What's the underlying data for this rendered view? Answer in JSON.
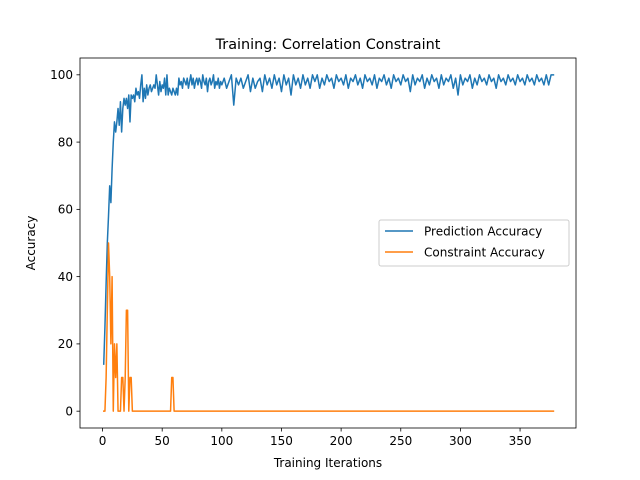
{
  "chart_data": {
    "type": "line",
    "title": "Training: Correlation Constraint",
    "xlabel": "Training Iterations",
    "ylabel": "Accuracy",
    "xlim": [
      -18.9,
      396.9
    ],
    "ylim": [
      -5,
      105
    ],
    "xticks": [
      0,
      50,
      100,
      150,
      200,
      250,
      300,
      350
    ],
    "yticks": [
      0,
      20,
      40,
      60,
      80,
      100
    ],
    "grid": false,
    "legend_position": "center-right",
    "series": [
      {
        "name": "Prediction Accuracy",
        "color": "#1f77b4",
        "points": [
          [
            1,
            14
          ],
          [
            2,
            25
          ],
          [
            3,
            38
          ],
          [
            4,
            50
          ],
          [
            5,
            58
          ],
          [
            6,
            67
          ],
          [
            7,
            62
          ],
          [
            8,
            72
          ],
          [
            9,
            80
          ],
          [
            10,
            86
          ],
          [
            11,
            83
          ],
          [
            12,
            86
          ],
          [
            13,
            90
          ],
          [
            14,
            85
          ],
          [
            15,
            92
          ],
          [
            16,
            83
          ],
          [
            17,
            90
          ],
          [
            18,
            93
          ],
          [
            19,
            91
          ],
          [
            20,
            93
          ],
          [
            21,
            90
          ],
          [
            22,
            94
          ],
          [
            23,
            86
          ],
          [
            24,
            94
          ],
          [
            25,
            93
          ],
          [
            26,
            94
          ],
          [
            27,
            92
          ],
          [
            28,
            96
          ],
          [
            29,
            94
          ],
          [
            30,
            95
          ],
          [
            31,
            93
          ],
          [
            32,
            97
          ],
          [
            33,
            100
          ],
          [
            34,
            92
          ],
          [
            35,
            96
          ],
          [
            36,
            93
          ],
          [
            37,
            97
          ],
          [
            38,
            94
          ],
          [
            39,
            96
          ],
          [
            40,
            97
          ],
          [
            41,
            95
          ],
          [
            42,
            96
          ],
          [
            43,
            97
          ],
          [
            44,
            96
          ],
          [
            45,
            100
          ],
          [
            46,
            97
          ],
          [
            47,
            94
          ],
          [
            48,
            98
          ],
          [
            49,
            95
          ],
          [
            50,
            97
          ],
          [
            51,
            96
          ],
          [
            52,
            99
          ],
          [
            53,
            94
          ],
          [
            54,
            100
          ],
          [
            55,
            94
          ],
          [
            56,
            96
          ],
          [
            57,
            95
          ],
          [
            58,
            94
          ],
          [
            59,
            96
          ],
          [
            60,
            95
          ],
          [
            61,
            94
          ],
          [
            62,
            96
          ],
          [
            63,
            94
          ],
          [
            64,
            99
          ],
          [
            65,
            97
          ],
          [
            66,
            98
          ],
          [
            67,
            96
          ],
          [
            68,
            99
          ],
          [
            69,
            98
          ],
          [
            70,
            97
          ],
          [
            71,
            99
          ],
          [
            72,
            96
          ],
          [
            73,
            98
          ],
          [
            74,
            100
          ],
          [
            75,
            97
          ],
          [
            76,
            99
          ],
          [
            77,
            96
          ],
          [
            78,
            98
          ],
          [
            79,
            99
          ],
          [
            80,
            97
          ],
          [
            81,
            99
          ],
          [
            82,
            98
          ],
          [
            83,
            96
          ],
          [
            84,
            100
          ],
          [
            85,
            98
          ],
          [
            86,
            97
          ],
          [
            87,
            99
          ],
          [
            88,
            95
          ],
          [
            89,
            98
          ],
          [
            90,
            99
          ],
          [
            91,
            97
          ],
          [
            92,
            98
          ],
          [
            93,
            100
          ],
          [
            94,
            96
          ],
          [
            95,
            98
          ],
          [
            96,
            97
          ],
          [
            97,
            99
          ],
          [
            98,
            96
          ],
          [
            99,
            98
          ],
          [
            100,
            97
          ],
          [
            102,
            99
          ],
          [
            104,
            96
          ],
          [
            106,
            98
          ],
          [
            108,
            100
          ],
          [
            110,
            91
          ],
          [
            112,
            99
          ],
          [
            114,
            97
          ],
          [
            116,
            99
          ],
          [
            118,
            96
          ],
          [
            120,
            98
          ],
          [
            122,
            100
          ],
          [
            124,
            95
          ],
          [
            126,
            99
          ],
          [
            128,
            96
          ],
          [
            130,
            98
          ],
          [
            132,
            99
          ],
          [
            134,
            95
          ],
          [
            136,
            100
          ],
          [
            138,
            97
          ],
          [
            140,
            99
          ],
          [
            142,
            96
          ],
          [
            144,
            100
          ],
          [
            146,
            97
          ],
          [
            148,
            99
          ],
          [
            150,
            95
          ],
          [
            152,
            100
          ],
          [
            154,
            97
          ],
          [
            156,
            99
          ],
          [
            158,
            94
          ],
          [
            160,
            100
          ],
          [
            162,
            97
          ],
          [
            164,
            99
          ],
          [
            166,
            96
          ],
          [
            168,
            100
          ],
          [
            170,
            97
          ],
          [
            172,
            99
          ],
          [
            174,
            96
          ],
          [
            176,
            100
          ],
          [
            178,
            98
          ],
          [
            180,
            100
          ],
          [
            182,
            96
          ],
          [
            184,
            99
          ],
          [
            186,
            97
          ],
          [
            188,
            100
          ],
          [
            190,
            98
          ],
          [
            192,
            99
          ],
          [
            194,
            96
          ],
          [
            196,
            100
          ],
          [
            198,
            98
          ],
          [
            200,
            99
          ],
          [
            202,
            97
          ],
          [
            204,
            100
          ],
          [
            206,
            96
          ],
          [
            208,
            99
          ],
          [
            210,
            98
          ],
          [
            212,
            100
          ],
          [
            214,
            97
          ],
          [
            216,
            99
          ],
          [
            218,
            96
          ],
          [
            220,
            100
          ],
          [
            222,
            98
          ],
          [
            224,
            99
          ],
          [
            226,
            97
          ],
          [
            228,
            100
          ],
          [
            230,
            96
          ],
          [
            232,
            99
          ],
          [
            234,
            98
          ],
          [
            236,
            100
          ],
          [
            238,
            97
          ],
          [
            240,
            99
          ],
          [
            242,
            96
          ],
          [
            244,
            100
          ],
          [
            246,
            98
          ],
          [
            248,
            99
          ],
          [
            250,
            97
          ],
          [
            252,
            100
          ],
          [
            254,
            98
          ],
          [
            256,
            99
          ],
          [
            258,
            95
          ],
          [
            260,
            100
          ],
          [
            262,
            97
          ],
          [
            264,
            99
          ],
          [
            266,
            98
          ],
          [
            268,
            100
          ],
          [
            270,
            96
          ],
          [
            272,
            99
          ],
          [
            274,
            97
          ],
          [
            276,
            100
          ],
          [
            278,
            98
          ],
          [
            280,
            99
          ],
          [
            282,
            96
          ],
          [
            284,
            100
          ],
          [
            286,
            97
          ],
          [
            288,
            99
          ],
          [
            290,
            98
          ],
          [
            292,
            100
          ],
          [
            294,
            96
          ],
          [
            296,
            99
          ],
          [
            298,
            94
          ],
          [
            300,
            100
          ],
          [
            302,
            97
          ],
          [
            304,
            99
          ],
          [
            306,
            98
          ],
          [
            308,
            100
          ],
          [
            310,
            96
          ],
          [
            312,
            99
          ],
          [
            314,
            97
          ],
          [
            316,
            100
          ],
          [
            318,
            98
          ],
          [
            320,
            99
          ],
          [
            322,
            97
          ],
          [
            324,
            100
          ],
          [
            326,
            98
          ],
          [
            328,
            99
          ],
          [
            330,
            96
          ],
          [
            332,
            100
          ],
          [
            334,
            98
          ],
          [
            336,
            99
          ],
          [
            338,
            97
          ],
          [
            340,
            100
          ],
          [
            342,
            98
          ],
          [
            344,
            99
          ],
          [
            346,
            97
          ],
          [
            348,
            100
          ],
          [
            350,
            98
          ],
          [
            352,
            99
          ],
          [
            354,
            97
          ],
          [
            356,
            100
          ],
          [
            358,
            98
          ],
          [
            360,
            99
          ],
          [
            362,
            97
          ],
          [
            364,
            100
          ],
          [
            366,
            98
          ],
          [
            368,
            99
          ],
          [
            370,
            97
          ],
          [
            372,
            100
          ],
          [
            374,
            97
          ],
          [
            376,
            100
          ],
          [
            378,
            100
          ]
        ]
      },
      {
        "name": "Constraint Accuracy",
        "color": "#ff7f0e",
        "points": [
          [
            1,
            0
          ],
          [
            2,
            0
          ],
          [
            3,
            10
          ],
          [
            4,
            30
          ],
          [
            5,
            50
          ],
          [
            6,
            40
          ],
          [
            7,
            20
          ],
          [
            8,
            40
          ],
          [
            9,
            0
          ],
          [
            10,
            20
          ],
          [
            11,
            10
          ],
          [
            12,
            20
          ],
          [
            13,
            0
          ],
          [
            14,
            0
          ],
          [
            15,
            0
          ],
          [
            16,
            10
          ],
          [
            17,
            10
          ],
          [
            18,
            0
          ],
          [
            19,
            10
          ],
          [
            20,
            30
          ],
          [
            21,
            30
          ],
          [
            22,
            0
          ],
          [
            23,
            10
          ],
          [
            24,
            10
          ],
          [
            25,
            0
          ],
          [
            26,
            0
          ],
          [
            27,
            0
          ],
          [
            28,
            0
          ],
          [
            30,
            0
          ],
          [
            35,
            0
          ],
          [
            40,
            0
          ],
          [
            45,
            0
          ],
          [
            50,
            0
          ],
          [
            55,
            0
          ],
          [
            56,
            0
          ],
          [
            57,
            0
          ],
          [
            58,
            10
          ],
          [
            59,
            10
          ],
          [
            60,
            0
          ],
          [
            61,
            0
          ],
          [
            65,
            0
          ],
          [
            70,
            0
          ],
          [
            80,
            0
          ],
          [
            100,
            0
          ],
          [
            150,
            0
          ],
          [
            200,
            0
          ],
          [
            250,
            0
          ],
          [
            300,
            0
          ],
          [
            350,
            0
          ],
          [
            378,
            0
          ]
        ]
      }
    ]
  }
}
